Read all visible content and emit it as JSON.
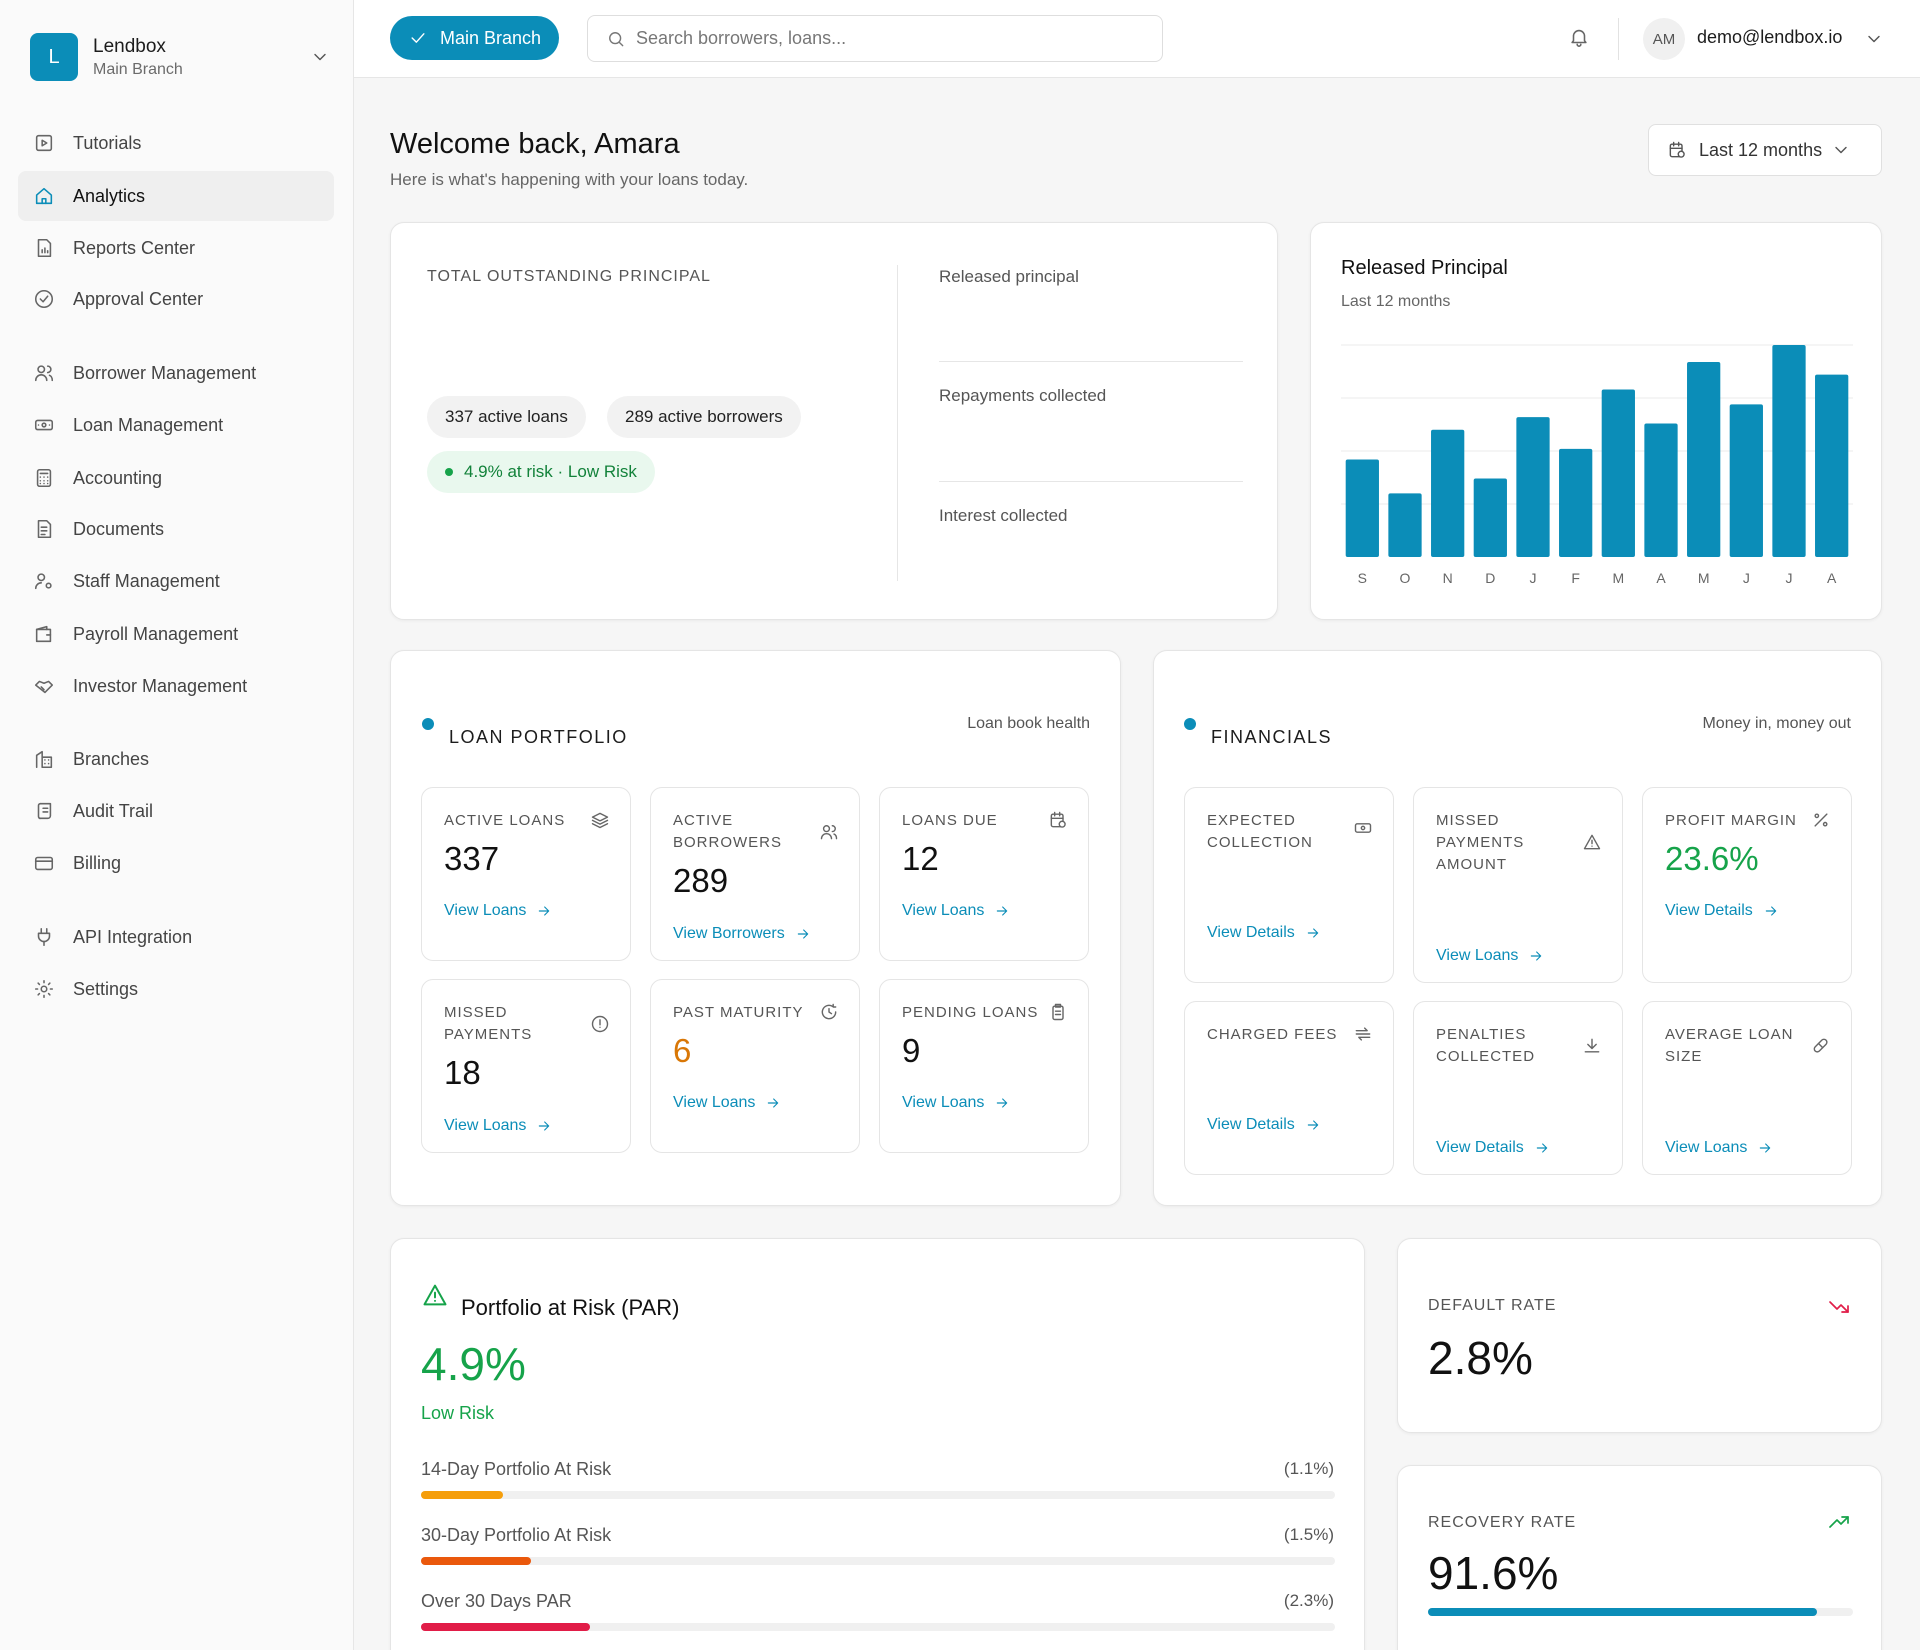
{
  "org": {
    "logo_letter": "L",
    "name": "Lendbox",
    "branch": "Main Branch"
  },
  "nav": [
    {
      "label": "Tutorials",
      "icon": "play-square-icon"
    },
    {
      "label": "Analytics",
      "icon": "home-icon",
      "active": true
    },
    {
      "label": "Reports Center",
      "icon": "report-icon"
    },
    {
      "label": "Approval Center",
      "icon": "check-circle-icon"
    },
    {
      "label": "Borrower Management",
      "icon": "users-icon"
    },
    {
      "label": "Loan Management",
      "icon": "banknote-icon"
    },
    {
      "label": "Accounting",
      "icon": "calculator-icon"
    },
    {
      "label": "Documents",
      "icon": "file-text-icon"
    },
    {
      "label": "Staff Management",
      "icon": "user-cog-icon"
    },
    {
      "label": "Payroll Management",
      "icon": "wallet-icon"
    },
    {
      "label": "Investor Management",
      "icon": "handshake-icon"
    },
    {
      "label": "Branches",
      "icon": "building-icon"
    },
    {
      "label": "Audit Trail",
      "icon": "scroll-icon"
    },
    {
      "label": "Billing",
      "icon": "credit-card-icon"
    },
    {
      "label": "API Integration",
      "icon": "plug-icon"
    },
    {
      "label": "Settings",
      "icon": "gear-icon"
    }
  ],
  "topbar": {
    "branch_button": "Main Branch",
    "search_placeholder": "Search borrowers, loans...",
    "avatar_initials": "AM",
    "user_email": "demo@lendbox.io"
  },
  "header": {
    "title": "Welcome back, Amara",
    "subtitle": "Here is what's happening with your loans today.",
    "period": "Last 12 months"
  },
  "outstanding": {
    "label": "TOTAL OUTSTANDING PRINCIPAL",
    "active_loans": "337 active loans",
    "active_borrowers": "289 active borrowers",
    "risk": "4.9% at risk · Low Risk",
    "released_label": "Released principal",
    "repayments_label": "Repayments collected",
    "interest_label": "Interest collected"
  },
  "chart_data": {
    "type": "bar",
    "title": "Released Principal",
    "subtitle": "Last 12 months",
    "categories": [
      "S",
      "O",
      "N",
      "D",
      "J",
      "F",
      "M",
      "A",
      "M",
      "J",
      "J",
      "A"
    ],
    "values": [
      46,
      30,
      60,
      37,
      66,
      51,
      79,
      63,
      92,
      72,
      100,
      86
    ],
    "ylim": [
      0,
      100
    ],
    "grid": true,
    "color": "#0b8db8"
  },
  "loan_portfolio": {
    "title": "LOAN PORTFOLIO",
    "note": "Loan book health",
    "tiles": [
      {
        "label": "ACTIVE LOANS",
        "value": "337",
        "link": "View Loans",
        "icon": "layers-icon"
      },
      {
        "label": "ACTIVE BORROWERS",
        "value": "289",
        "link": "View Borrowers",
        "icon": "users-icon"
      },
      {
        "label": "LOANS DUE",
        "value": "12",
        "link": "View Loans",
        "icon": "calendar-clock-icon"
      },
      {
        "label": "MISSED PAYMENTS",
        "value": "18",
        "link": "View Loans",
        "icon": "alert-circle-icon"
      },
      {
        "label": "PAST MATURITY",
        "value": "6",
        "link": "View Loans",
        "icon": "clock-icon",
        "color": "#d97706"
      },
      {
        "label": "PENDING LOANS",
        "value": "9",
        "link": "View Loans",
        "icon": "clipboard-icon"
      }
    ]
  },
  "financials": {
    "title": "FINANCIALS",
    "note": "Money in, money out",
    "tiles": [
      {
        "label": "EXPECTED COLLECTION",
        "value": "",
        "link": "View Details",
        "icon": "banknote-icon"
      },
      {
        "label": "MISSED PAYMENTS AMOUNT",
        "value": "",
        "link": "View Loans",
        "icon": "warning-icon"
      },
      {
        "label": "PROFIT MARGIN",
        "value": "23.6%",
        "link": "View Details",
        "icon": "percent-icon",
        "color": "#16a34a"
      },
      {
        "label": "CHARGED FEES",
        "value": "",
        "link": "View Details",
        "icon": "transfer-icon"
      },
      {
        "label": "PENALTIES COLLECTED",
        "value": "",
        "link": "View Details",
        "icon": "download-icon"
      },
      {
        "label": "AVERAGE LOAN SIZE",
        "value": "",
        "link": "View Loans",
        "icon": "pill-icon"
      }
    ]
  },
  "par": {
    "title": "Portfolio at Risk (PAR)",
    "value": "4.9%",
    "risk": "Low Risk",
    "rows": [
      {
        "label": "14-Day Portfolio At Risk",
        "value": "(1.1%)",
        "fill": 9,
        "color": "#f59e0b"
      },
      {
        "label": "30-Day Portfolio At Risk",
        "value": "(1.5%)",
        "fill": 12,
        "color": "#ea580c"
      },
      {
        "label": "Over 30 Days PAR",
        "value": "(2.3%)",
        "fill": 18.5,
        "color": "#e11d48"
      }
    ]
  },
  "default_rate": {
    "label": "DEFAULT RATE",
    "value": "2.8%",
    "color": "#e11d48"
  },
  "recovery_rate": {
    "label": "RECOVERY RATE",
    "value": "91.6%",
    "progress": 91.6,
    "color": "#0b8db8"
  }
}
